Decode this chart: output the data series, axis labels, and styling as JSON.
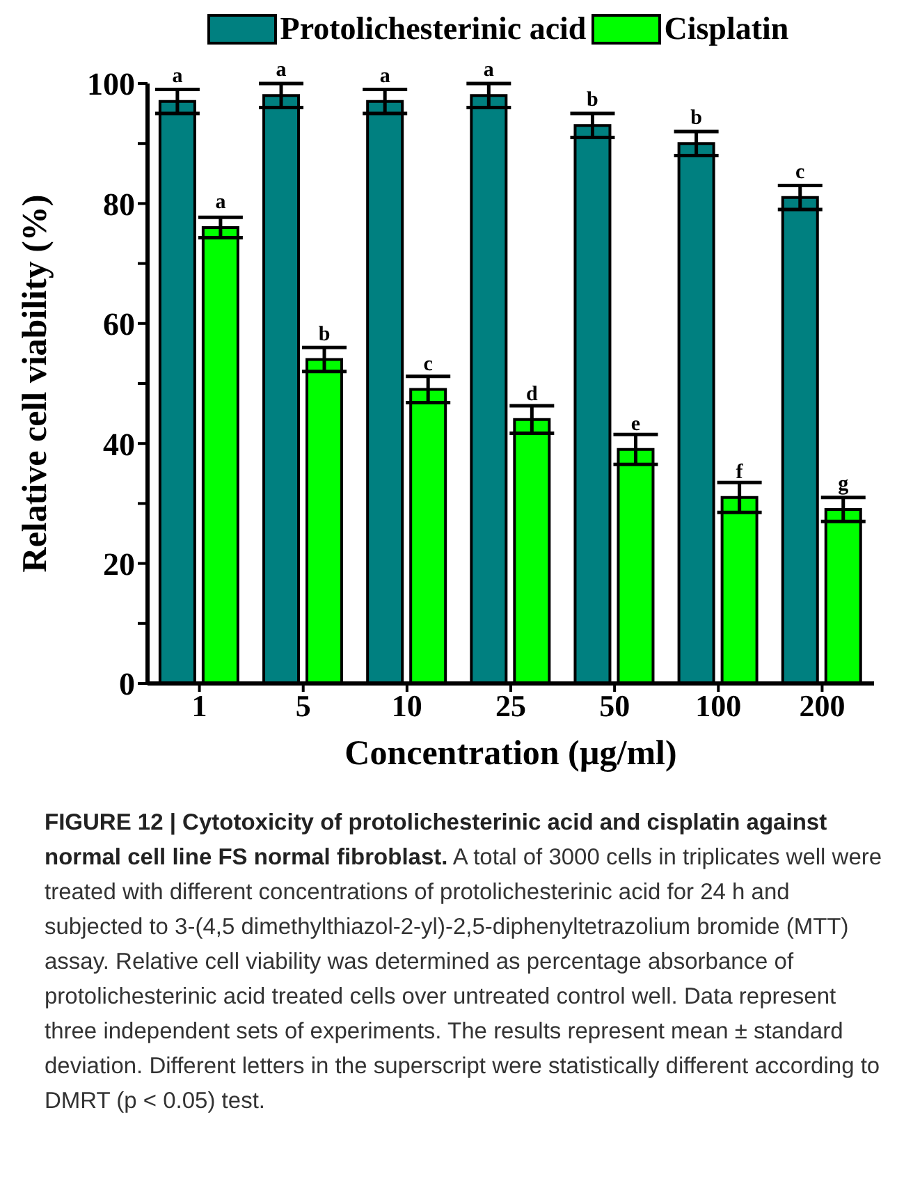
{
  "chart_data": {
    "type": "bar",
    "title": "FIGURE 12 | Cytotoxicity of protolichesterinic acid and cisplatin against normal cell line FS normal fibroblast.",
    "xlabel": "Concentration (µg/ml)",
    "ylabel": "Relative cell viability (%)",
    "categories": [
      "1",
      "5",
      "10",
      "25",
      "50",
      "100",
      "200"
    ],
    "series": [
      {
        "name": "Protolichesterinic acid",
        "color": "#008080",
        "values": [
          97,
          98,
          97,
          98,
          93,
          90,
          81
        ],
        "errors": [
          2,
          2,
          2,
          2,
          2,
          2,
          2
        ],
        "value_labels": [
          "a",
          "a",
          "a",
          "a",
          "b",
          "b",
          "c"
        ]
      },
      {
        "name": "Cisplatin",
        "color": "#00ff00",
        "values": [
          76,
          54,
          49,
          44,
          39,
          31,
          29
        ],
        "errors": [
          1.7,
          2,
          2.2,
          2.3,
          2.5,
          2.5,
          2
        ],
        "value_labels": [
          "a",
          "b",
          "c",
          "d",
          "e",
          "f",
          "g"
        ]
      }
    ],
    "ylim": [
      0,
      100
    ],
    "yticks": [
      0,
      {
        "value": 10,
        "label": null
      },
      20,
      {
        "value": 30,
        "label": null
      },
      40,
      {
        "value": 50,
        "label": null
      },
      60,
      {
        "value": 70,
        "label": null
      },
      80,
      {
        "value": 90,
        "label": null
      },
      100
    ],
    "grid": false,
    "legend": "top",
    "annotations": [
      "A total of 3000 cells in triplicates well were treated with different concentrations of protolichesterinic acid for 24 h and subjected to 3-(4,5 dimethylthiazol-2-yl)-2,5-diphenyltetrazolium bromide (MTT) assay. Relative cell viability was determined as percentage absorbance of protolichesterinic acid treated cells over untreated control well. Data represent three independent sets of experiments. The results represent mean ± standard deviation. Different letters in the superscript were statistically different according to DMRT (p < 0.05) test."
    ]
  }
}
